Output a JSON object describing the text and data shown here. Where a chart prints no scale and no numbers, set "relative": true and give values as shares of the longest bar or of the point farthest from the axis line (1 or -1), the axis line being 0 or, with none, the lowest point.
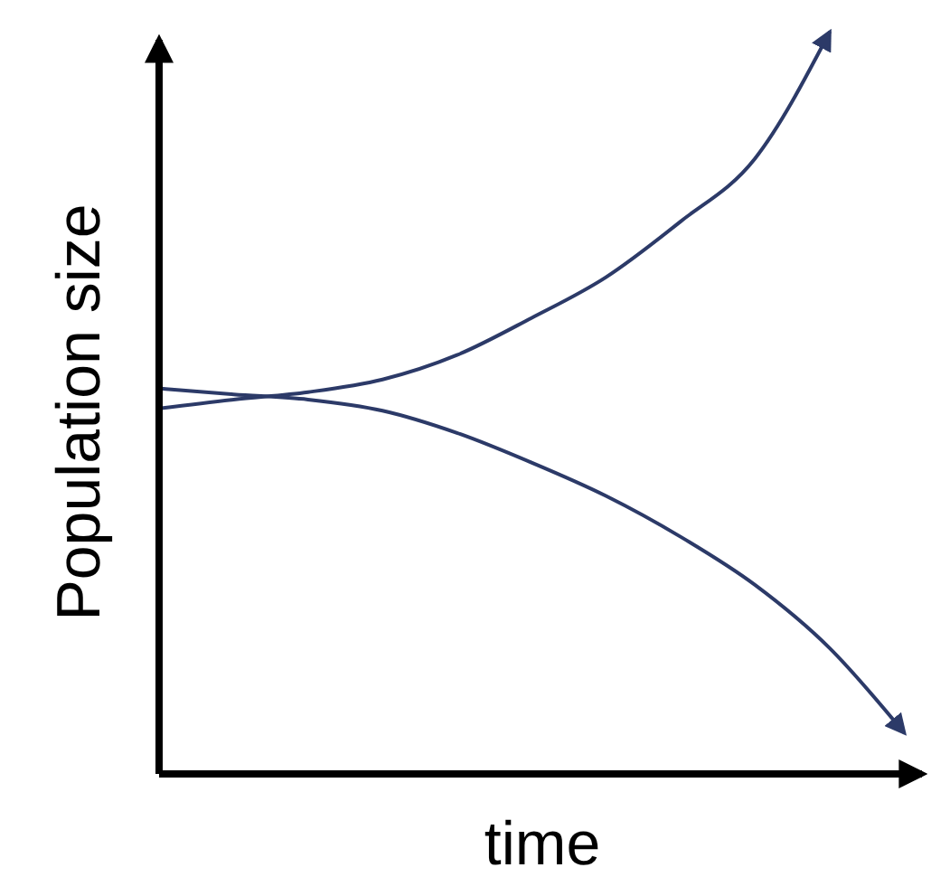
{
  "chart_data": {
    "type": "line",
    "relative": true,
    "xlabel": "time",
    "ylabel": "Population size",
    "categories": [
      null,
      null,
      null,
      null,
      null,
      null,
      null,
      null,
      null,
      null,
      null
    ],
    "series": [
      {
        "color": "#2c3a68",
        "values": [
          0.493,
          0.505,
          0.515,
          0.532,
          0.565,
          0.615,
          0.67,
          0.745,
          0.83,
          1.0,
          null
        ]
      },
      {
        "color": "#2c3a68",
        "values": [
          0.52,
          0.512,
          0.505,
          0.49,
          0.46,
          0.42,
          0.375,
          0.32,
          0.255,
          0.17,
          0.056
        ]
      }
    ],
    "marker": "none",
    "line_style": "solid"
  }
}
